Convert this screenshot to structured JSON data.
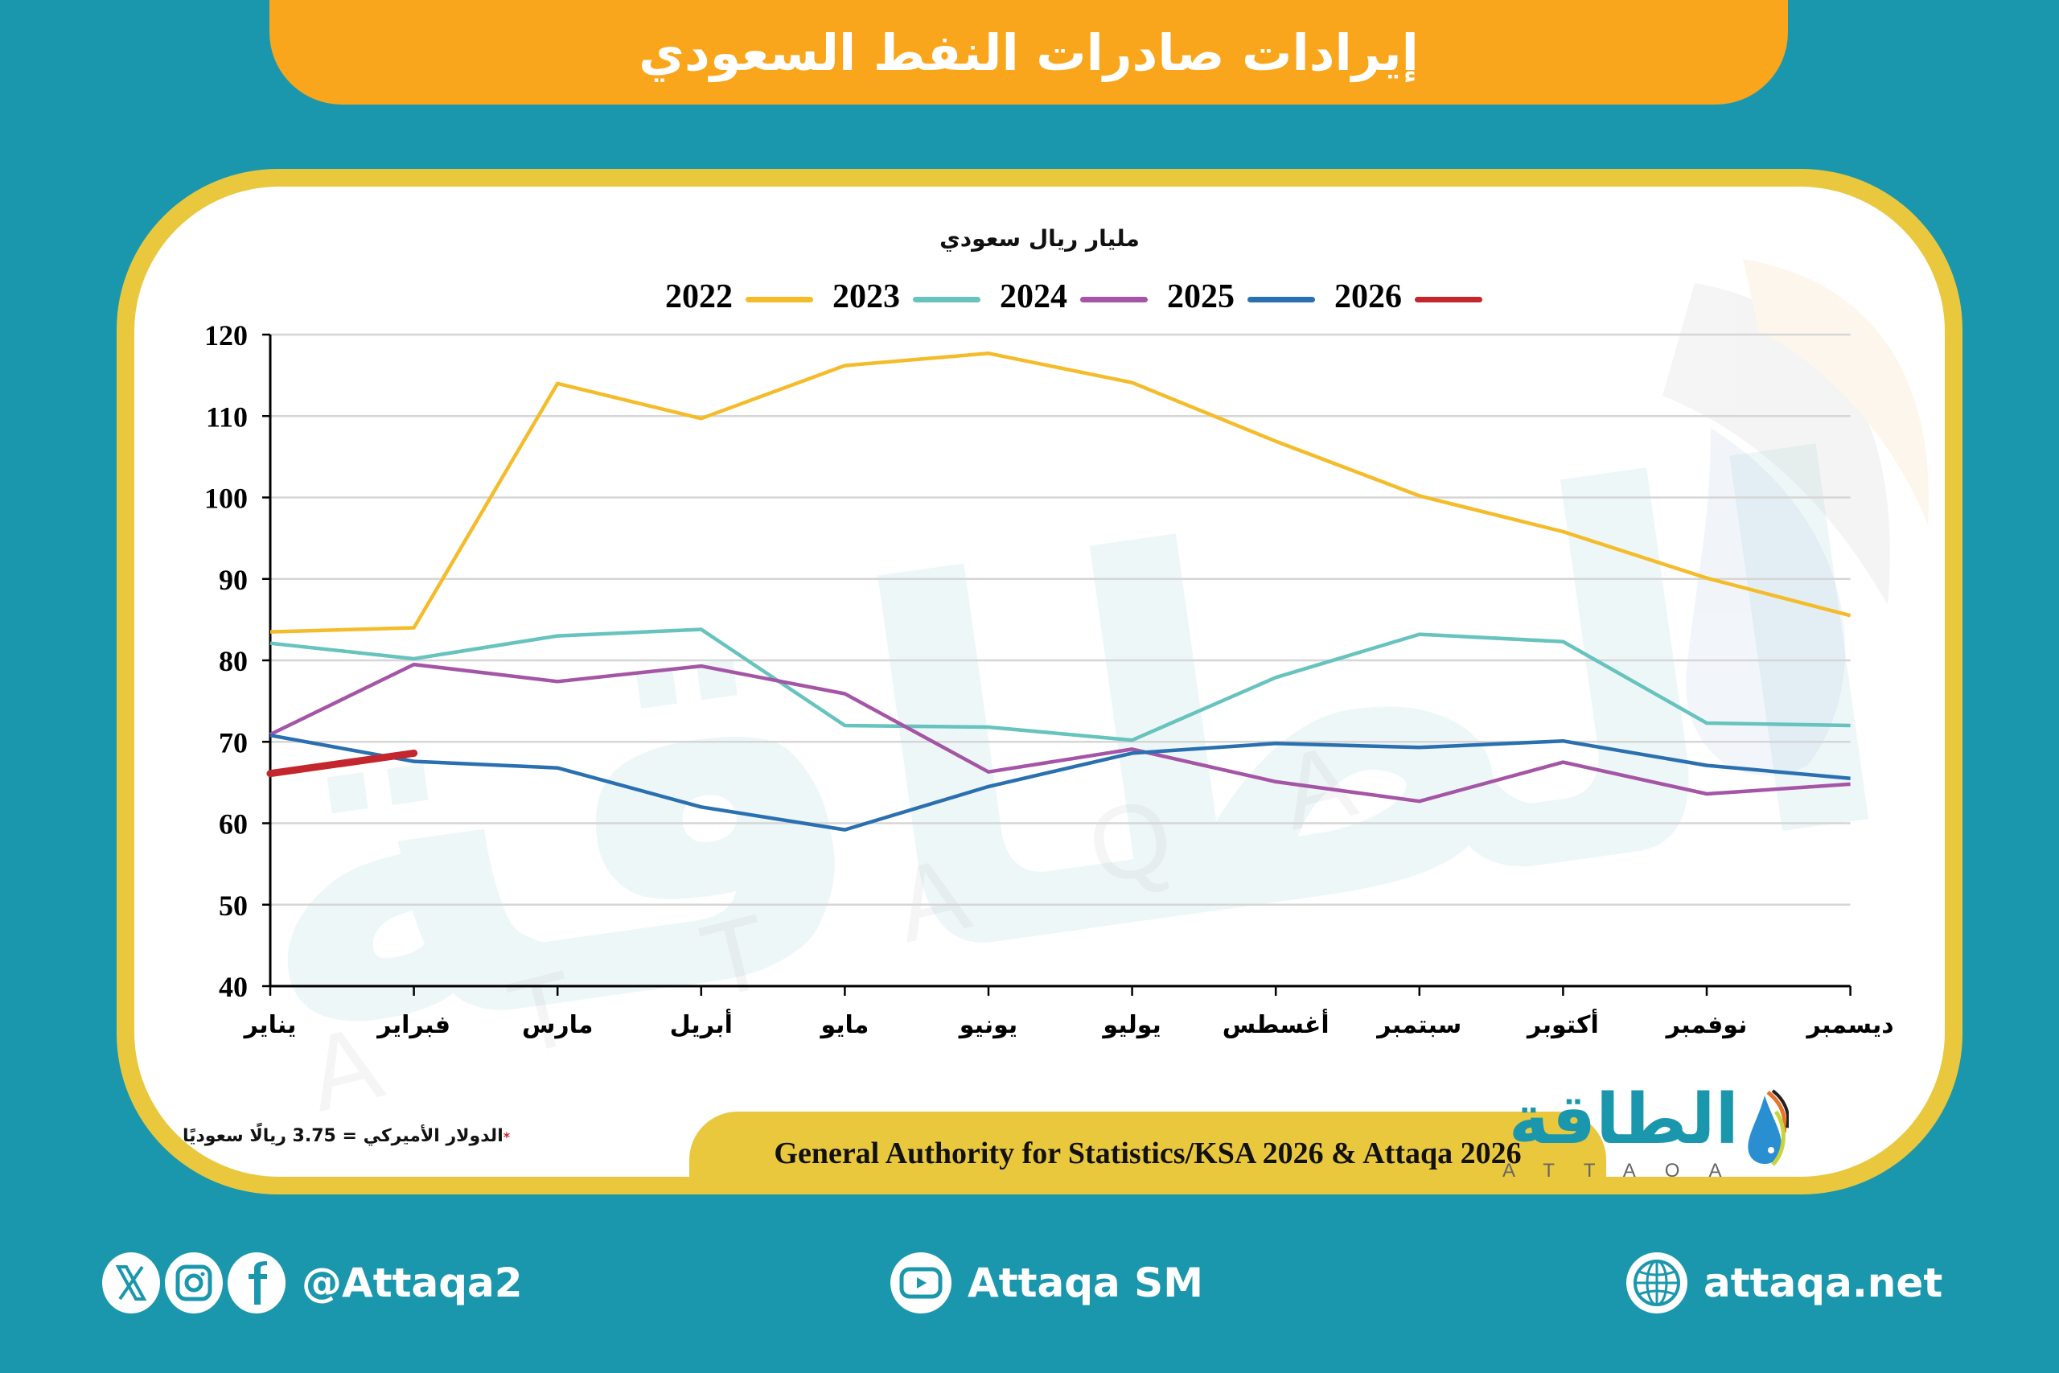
{
  "header": {
    "title": "إيرادات صادرات النفط السعودي"
  },
  "chart": {
    "unit_label": "مليار ريال سعودي"
  },
  "legend": [
    {
      "year": "2022",
      "color": "#F4BC2A"
    },
    {
      "year": "2023",
      "color": "#67C3BE"
    },
    {
      "year": "2024",
      "color": "#A555A6"
    },
    {
      "year": "2025",
      "color": "#2A70B0"
    },
    {
      "year": "2026",
      "color": "#C4262E"
    }
  ],
  "chart_data": {
    "type": "line",
    "title": "إيرادات صادرات النفط السعودي",
    "ylabel": "مليار ريال سعودي",
    "xlabel": "",
    "ylim": [
      40,
      120
    ],
    "yticks": [
      40,
      50,
      60,
      70,
      80,
      90,
      100,
      110,
      120
    ],
    "grid": true,
    "legend_position": "top",
    "categories": [
      "يناير",
      "فبراير",
      "مارس",
      "أبريل",
      "مايو",
      "يونيو",
      "يوليو",
      "أغسطس",
      "سبتمبر",
      "أكتوبر",
      "نوفمبر",
      "ديسمبر"
    ],
    "series": [
      {
        "name": "2022",
        "color": "#F4BC2A",
        "values": [
          83.5,
          84.0,
          114.0,
          109.7,
          116.2,
          117.7,
          114.1,
          106.9,
          100.2,
          95.8,
          90.1,
          85.5
        ]
      },
      {
        "name": "2023",
        "color": "#67C3BE",
        "values": [
          82.1,
          80.2,
          83.0,
          83.8,
          72.0,
          71.8,
          70.2,
          77.9,
          83.2,
          82.3,
          72.3,
          72.0
        ]
      },
      {
        "name": "2024",
        "color": "#A555A6",
        "values": [
          70.9,
          79.5,
          77.4,
          79.3,
          75.9,
          66.3,
          69.1,
          65.1,
          62.7,
          67.5,
          63.6,
          64.8
        ]
      },
      {
        "name": "2025",
        "color": "#2A70B0",
        "values": [
          70.8,
          67.6,
          66.8,
          62.0,
          59.2,
          64.5,
          68.6,
          69.8,
          69.3,
          70.1,
          67.1,
          65.5
        ]
      },
      {
        "name": "2026",
        "color": "#C4262E",
        "values": [
          66.1,
          68.6
        ]
      }
    ]
  },
  "footer": {
    "note_star": "*",
    "note": "الدولار الأميركي = 3.75 ريالًا سعوديًا",
    "source": "General Authority for Statistics/KSA 2026 & Attaqa 2026",
    "logo_ar": "الطاقة",
    "logo_en": "ATTAQA"
  },
  "social": {
    "handle": "@Attaqa2",
    "youtube": "Attaqa SM",
    "website": "attaqa.net"
  }
}
